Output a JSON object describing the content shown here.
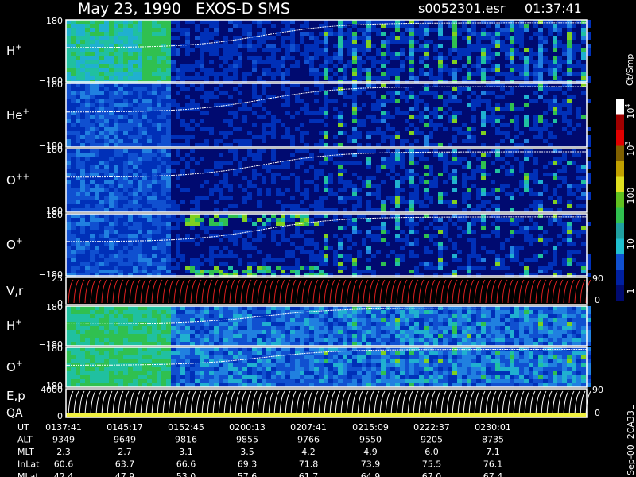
{
  "header": {
    "title": "May 23, 1990   EXOS-D SMS",
    "file": "s0052301.esr",
    "time": "01:37:41"
  },
  "panels": [
    {
      "label": {
        "base": "H",
        "sup": "+"
      },
      "ticks": [
        "180",
        "−180"
      ]
    },
    {
      "label": {
        "base": "He",
        "sup": "+"
      },
      "ticks": [
        "180",
        "−180"
      ]
    },
    {
      "label": {
        "base": "O",
        "sup": "++"
      },
      "ticks": [
        "180",
        "−180"
      ]
    },
    {
      "label": {
        "base": "O",
        "sup": "+"
      },
      "ticks": [
        "180",
        "−180"
      ]
    },
    {
      "label": {
        "base": "V,r"
      },
      "ticks": [
        "25",
        "0"
      ],
      "right_ticks": [
        "90",
        "0"
      ]
    },
    {
      "label": {
        "base": "H",
        "sup": "+"
      },
      "ticks": [
        "180",
        "−180"
      ]
    },
    {
      "label": {
        "base": "O",
        "sup": "+"
      },
      "ticks": [
        "180",
        "−180"
      ]
    },
    {
      "label": {
        "base": "E,p"
      },
      "label2": "QA",
      "ticks": [
        "4000",
        "0"
      ],
      "right_ticks": [
        "90",
        "0"
      ]
    }
  ],
  "colorbar": {
    "unit": "Ct/Smp",
    "ticks": [
      {
        "base": "10",
        "sup": "4"
      },
      {
        "base": "10",
        "sup": "3"
      },
      {
        "base": "100"
      },
      {
        "base": "10"
      },
      {
        "base": "1"
      }
    ]
  },
  "footer_code": "Sep-00  2CA33L",
  "table": {
    "rows": [
      {
        "label": "UT",
        "cells": [
          "0137:41",
          "0145:17",
          "0152:45",
          "0200:13",
          "0207:41",
          "0215:09",
          "0222:37",
          "0230:01"
        ]
      },
      {
        "label": "ALT",
        "cells": [
          "9349",
          "9649",
          "9816",
          "9855",
          "9766",
          "9550",
          "9205",
          "8735"
        ]
      },
      {
        "label": "MLT",
        "cells": [
          "2.3",
          "2.7",
          "3.1",
          "3.5",
          "4.2",
          "4.9",
          "6.0",
          "7.1"
        ]
      },
      {
        "label": "InLat",
        "cells": [
          "60.6",
          "63.7",
          "66.6",
          "69.3",
          "71.8",
          "73.9",
          "75.5",
          "76.1"
        ]
      },
      {
        "label": "MLat",
        "cells": [
          "42.4",
          "47.9",
          "53.0",
          "57.6",
          "61.7",
          "64.9",
          "67.0",
          "67.4"
        ]
      }
    ]
  }
}
